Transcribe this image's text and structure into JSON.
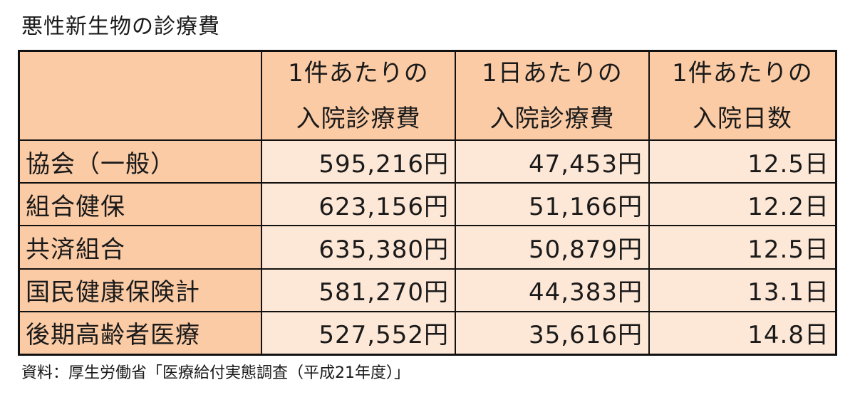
{
  "title": "悪性新生物の診療費",
  "table": {
    "headers": [
      {
        "line1": "1件あたりの",
        "line2": "入院診療費"
      },
      {
        "line1": "1日あたりの",
        "line2": "入院診療費"
      },
      {
        "line1": "1件あたりの",
        "line2": "入院日数"
      }
    ],
    "rows": [
      {
        "label": "協会（一般）",
        "per_case_cost": "595,216円",
        "per_day_cost": "47,453円",
        "days": "12.5日"
      },
      {
        "label": "組合健保",
        "per_case_cost": "623,156円",
        "per_day_cost": "51,166円",
        "days": "12.2日"
      },
      {
        "label": "共済組合",
        "per_case_cost": "635,380円",
        "per_day_cost": "50,879円",
        "days": "12.5日"
      },
      {
        "label": "国民健康保険計",
        "per_case_cost": "581,270円",
        "per_day_cost": "44,383円",
        "days": "13.1日"
      },
      {
        "label": "後期高齢者医療",
        "per_case_cost": "527,552円",
        "per_day_cost": "35,616円",
        "days": "14.8日"
      }
    ]
  },
  "source": "資料：厚生労働省「医療給付実態調査（平成21年度）」"
}
